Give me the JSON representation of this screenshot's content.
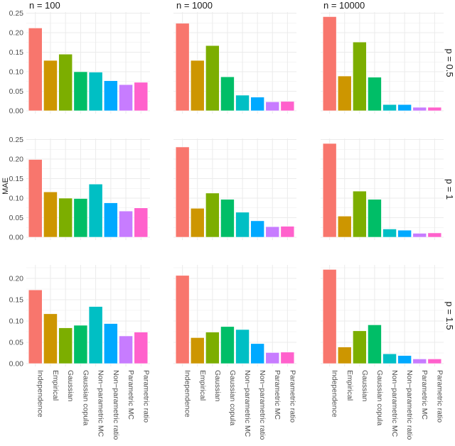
{
  "chart_data": {
    "type": "bar",
    "layout": "facet grid, columns by n, rows by p, y scale free per row",
    "ylabel": "MAE",
    "xlabel": "",
    "categories": [
      "Independence",
      "Empirical",
      "Gaussian",
      "Gaussian copula",
      "Non−parametric MC",
      "Non−parametric ratio",
      "Parametric MC",
      "Parametric ratio"
    ],
    "colors": [
      "#F8766D",
      "#CD9600",
      "#7CAE00",
      "#00BE67",
      "#00BFC4",
      "#00A9FF",
      "#C77CFF",
      "#FF61CC"
    ],
    "columns": [
      "n = 100",
      "n = 1000",
      "n = 10000"
    ],
    "rows": [
      {
        "label": "p = 0.5",
        "ylim": [
          0,
          0.25
        ],
        "yticks": [
          "0.00",
          "0.05",
          "0.10",
          "0.15",
          "0.20",
          "0.25"
        ],
        "values": [
          [
            0.212,
            0.129,
            0.145,
            0.1,
            0.099,
            0.077,
            0.067,
            0.073
          ],
          [
            0.224,
            0.129,
            0.167,
            0.087,
            0.04,
            0.035,
            0.023,
            0.024
          ],
          [
            0.241,
            0.089,
            0.176,
            0.086,
            0.016,
            0.016,
            0.009,
            0.009
          ]
        ]
      },
      {
        "label": "p = 1",
        "ylim": [
          0,
          0.25
        ],
        "yticks": [
          "0.00",
          "0.05",
          "0.10",
          "0.15",
          "0.20",
          "0.25"
        ],
        "values": [
          [
            0.199,
            0.116,
            0.1,
            0.099,
            0.136,
            0.088,
            0.067,
            0.075
          ],
          [
            0.231,
            0.074,
            0.113,
            0.097,
            0.064,
            0.042,
            0.027,
            0.028
          ],
          [
            0.24,
            0.054,
            0.118,
            0.097,
            0.021,
            0.018,
            0.01,
            0.011
          ]
        ]
      },
      {
        "label": "p = 1.5",
        "ylim": [
          0,
          0.23
        ],
        "yticks": [
          "0.00",
          "0.05",
          "0.10",
          "0.15",
          "0.20"
        ],
        "values": [
          [
            0.173,
            0.117,
            0.084,
            0.09,
            0.134,
            0.094,
            0.065,
            0.074
          ],
          [
            0.207,
            0.061,
            0.074,
            0.087,
            0.08,
            0.047,
            0.026,
            0.027
          ],
          [
            0.221,
            0.039,
            0.077,
            0.091,
            0.023,
            0.019,
            0.011,
            0.011
          ]
        ]
      }
    ],
    "grid": true,
    "legend": "none"
  }
}
